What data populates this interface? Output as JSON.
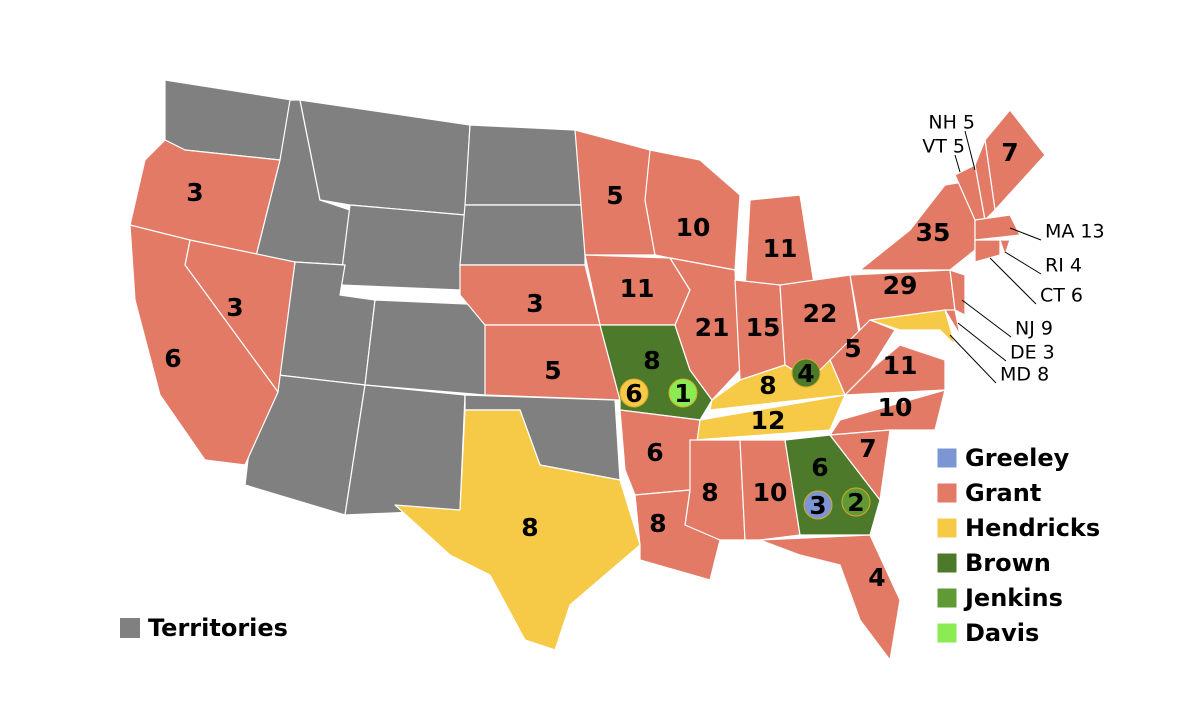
{
  "legend": [
    {
      "name": "Greeley",
      "color": "#7b96d2"
    },
    {
      "name": "Grant",
      "color": "#e27a66"
    },
    {
      "name": "Hendricks",
      "color": "#f6c946"
    },
    {
      "name": "Brown",
      "color": "#4c7a2a"
    },
    {
      "name": "Jenkins",
      "color": "#5f9a35"
    },
    {
      "name": "Davis",
      "color": "#8aec52"
    }
  ],
  "territories": {
    "name": "Territories",
    "color": "#808080"
  },
  "state_votes": [
    3,
    3,
    6,
    5,
    10,
    11,
    11,
    3,
    5,
    8,
    21,
    15,
    22,
    29,
    35,
    7,
    5,
    11,
    8,
    12,
    6,
    8,
    10,
    6,
    10,
    7,
    4,
    8,
    8
  ],
  "split_votes": [
    6,
    1,
    4,
    3,
    2
  ],
  "callouts": [
    "NH 5",
    "VT 5",
    "MA 13",
    "RI 4",
    "CT 6",
    "NJ 9",
    "DE 3",
    "MD 8"
  ]
}
